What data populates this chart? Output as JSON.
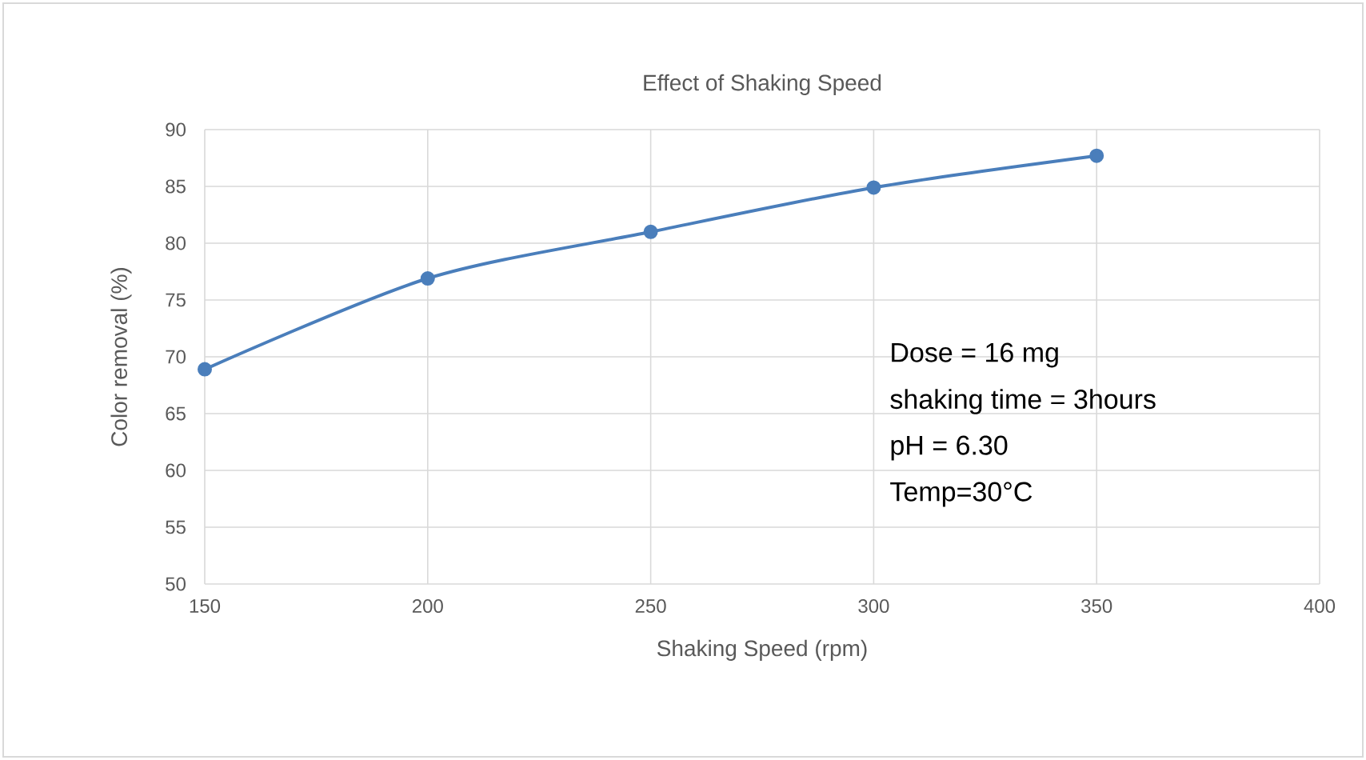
{
  "chart_data": {
    "type": "line",
    "title": "Effect of Shaking Speed",
    "xlabel": "Shaking Speed (rpm)",
    "ylabel": "Color removal (%)",
    "x": [
      150,
      200,
      250,
      300,
      350
    ],
    "series": [
      {
        "color": "#4a7ebb",
        "values": [
          68.9,
          76.9,
          81,
          84.9,
          87.7
        ]
      }
    ],
    "xlim": [
      150,
      400
    ],
    "xticks": [
      150,
      200,
      250,
      300,
      350,
      400
    ],
    "ylim": [
      50,
      90
    ],
    "yticks": [
      50,
      55,
      60,
      65,
      70,
      75,
      80,
      85,
      90
    ],
    "grid": true,
    "marker": "circle",
    "line_style": "solid",
    "annotations": [
      "Dose = 16 mg",
      "shaking time = 3hours",
      "pH = 6.30",
      "Temp=30°C"
    ]
  }
}
